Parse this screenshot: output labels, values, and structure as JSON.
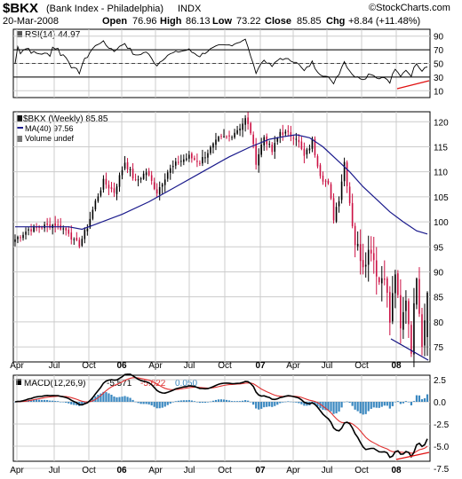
{
  "header": {
    "symbol": "$BKX",
    "name": "(Bank Index - Philadelphia)",
    "exchange": "INDX",
    "watermark": "©StockCharts.com",
    "date": "20-Mar-2008",
    "open_label": "Open",
    "open": "76.96",
    "high_label": "High",
    "high": "86.13",
    "low_label": "Low",
    "low": "73.22",
    "close_label": "Close",
    "close": "85.85",
    "chg_label": "Chg",
    "chg": "+8.84 (+11.48%)"
  },
  "rsi_panel": {
    "label": "RSI(14) 44.97",
    "ticks": [
      "90",
      "70",
      "50",
      "30",
      "10"
    ]
  },
  "price_panel": {
    "legend_price": "$BKX (Weekly) 85.85",
    "legend_ma": "MA(40) 97.56",
    "legend_volume": "Volume undef",
    "ticks": [
      "120",
      "115",
      "110",
      "105",
      "100",
      "95",
      "90",
      "85",
      "80",
      "75"
    ]
  },
  "macd_panel": {
    "label_prefix": "MACD(12,26,9)",
    "macd": "-5.571",
    "signal": "-5.622",
    "histogram": "0.050",
    "ticks": [
      "2.5",
      "0.0",
      "-2.5",
      "-5.0",
      "-7.5"
    ]
  },
  "x_axis": [
    "Apr",
    "Jul",
    "Oct",
    "06",
    "Apr",
    "Jul",
    "Oct",
    "07",
    "Apr",
    "Jul",
    "Oct",
    "08"
  ],
  "colors": {
    "up": "#000000",
    "down": "#cc1144",
    "ma": "#1a1a8c",
    "signal": "#e03030",
    "histogram": "#3a88c0",
    "trendline_red": "#e01010",
    "trendline_blue": "#101080",
    "grid": "#cccccc"
  },
  "chart_data": {
    "type": "line",
    "series": [
      {
        "name": "$BKX",
        "x": [
          "Apr 05",
          "Jul 05",
          "Oct 05",
          "Jan 06",
          "Apr 06",
          "Jul 06",
          "Oct 06",
          "Jan 07",
          "Apr 07",
          "Jul 07",
          "Oct 07",
          "Jan 08",
          "Mar 08"
        ],
        "values": [
          97,
          99,
          97,
          113,
          110,
          108,
          117,
          119,
          114,
          116,
          103,
          90,
          85.85
        ]
      },
      {
        "name": "MA(40)",
        "x": [
          "Apr 05",
          "Jul 05",
          "Oct 05",
          "Jan 06",
          "Apr 06",
          "Jul 06",
          "Oct 06",
          "Jan 07",
          "Apr 07",
          "Jul 07",
          "Oct 07",
          "Jan 08",
          "Mar 08"
        ],
        "values": [
          99,
          99,
          98.5,
          101,
          104.5,
          108,
          112.5,
          114.5,
          117,
          116.5,
          111,
          104,
          97.56
        ]
      },
      {
        "name": "RSI(14)",
        "x": [
          "Apr 05",
          "Jul 05",
          "Oct 05",
          "Jan 06",
          "Apr 06",
          "Jul 06",
          "Oct 06",
          "Jan 07",
          "Apr 07",
          "Jul 07",
          "Oct 07",
          "Jan 08",
          "Mar 08"
        ],
        "values": [
          50,
          54,
          48,
          62,
          52,
          50,
          63,
          62,
          50,
          54,
          36,
          28,
          44.97
        ]
      },
      {
        "name": "MACD(12,26,9)",
        "x": [
          "Apr 05",
          "Jul 05",
          "Oct 05",
          "Jan 06",
          "Apr 06",
          "Jul 06",
          "Oct 06",
          "Jan 07",
          "Apr 07",
          "Jul 07",
          "Oct 07",
          "Jan 08",
          "Mar 08"
        ],
        "values": [
          0.2,
          0.3,
          0,
          1.5,
          0.5,
          0,
          1.3,
          1.2,
          -0.3,
          0.5,
          -3.5,
          -7.5,
          -5.571
        ]
      }
    ],
    "ylim_price": [
      72,
      122
    ],
    "ylim_rsi": [
      0,
      100
    ],
    "ylim_macd": [
      -8.5,
      3
    ]
  }
}
